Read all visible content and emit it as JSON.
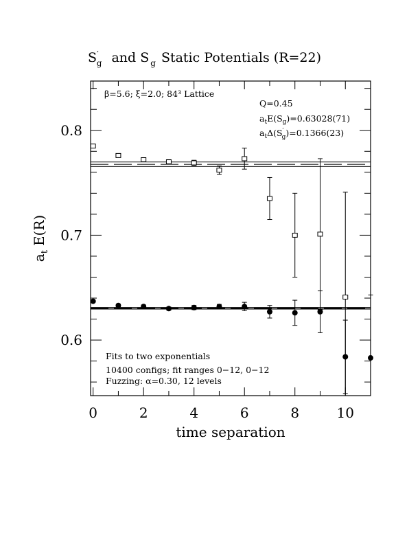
{
  "chart_data": {
    "type": "scatter",
    "title": "S′g  and Sg Static Potentials (R=22)",
    "title_parts": {
      "s1": "S",
      "s1_sup": "′",
      "s1_sub": "g",
      "mid": "and S",
      "s2_sub": "g",
      "rest": "Static Potentials (R=22)"
    },
    "xlabel": "time separation",
    "ylabel_main": "a",
    "ylabel_sub": "t",
    "ylabel_rest": "E(R)",
    "xlim": [
      -0.1,
      11.0
    ],
    "ylim": [
      0.547,
      0.847
    ],
    "x_ticks": [
      0,
      2,
      4,
      6,
      8,
      10
    ],
    "x_tick_labels": [
      "0",
      "2",
      "4",
      "6",
      "8",
      "10"
    ],
    "y_ticks": [
      0.6,
      0.7,
      0.8
    ],
    "y_tick_labels": [
      "0.6",
      "0.7",
      "0.8"
    ],
    "grid": false,
    "annotations": {
      "lattice": "β=5.6; ξ=2.0; 84³ Lattice",
      "q": "Q=0.45",
      "energy_prefix": "a",
      "energy_sub1": "t",
      "energy_mid": "E(S",
      "energy_sub2": "g",
      "energy_val": ")=0.63028(71)",
      "delta_prefix": "a",
      "delta_sub1": "t",
      "delta_mid": "Δ(S",
      "delta_sup": "′",
      "delta_sub2": "g",
      "delta_val": ")=0.1366(23)",
      "fit_line1": "Fits to two exponentials",
      "fit_line2": "10400 configs; fit ranges 0−12, 0−12",
      "fit_line3": "Fuzzing: α=0.30, 12 levels"
    },
    "series": [
      {
        "marker": "open-square",
        "x": [
          0,
          1,
          2,
          3,
          4,
          5,
          6,
          7,
          8,
          9,
          10
        ],
        "y": [
          0.785,
          0.776,
          0.772,
          0.77,
          0.769,
          0.762,
          0.773,
          0.735,
          0.7,
          0.701,
          0.641
        ],
        "err": [
          0.001,
          0.0012,
          0.0015,
          0.002,
          0.0025,
          0.004,
          0.01,
          0.02,
          0.04,
          0.072,
          0.1
        ]
      },
      {
        "marker": "filled-circle",
        "x": [
          0,
          1,
          2,
          3,
          4,
          5,
          6,
          7,
          8,
          9,
          10,
          11
        ],
        "y": [
          0.637,
          0.633,
          0.632,
          0.63,
          0.631,
          0.632,
          0.632,
          0.627,
          0.626,
          0.627,
          0.584,
          0.583
        ],
        "err": [
          0.001,
          0.0012,
          0.0015,
          0.0015,
          0.002,
          0.002,
          0.004,
          0.006,
          0.012,
          0.02,
          0.035,
          0.06
        ]
      }
    ],
    "fit_bands": [
      {
        "y": [
          0.7656,
          0.7676,
          0.7698
        ],
        "style": "dashed-thin"
      },
      {
        "y": [
          0.6296,
          0.6303,
          0.631
        ],
        "style": "dashed-thick"
      }
    ]
  }
}
